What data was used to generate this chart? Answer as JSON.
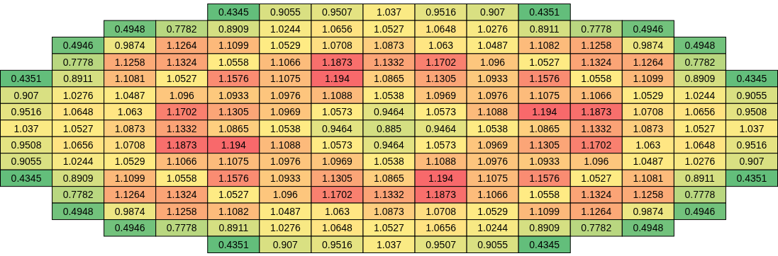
{
  "chart_data": {
    "type": "heatmap",
    "data_labels": true,
    "categories": [
      null,
      null,
      null,
      null,
      null,
      null,
      null,
      null,
      null,
      null,
      null,
      null,
      null,
      null,
      null
    ],
    "y_categories": [
      null,
      null,
      null,
      null,
      null,
      null,
      null,
      null,
      null,
      null,
      null,
      null,
      null,
      null,
      null
    ],
    "cells": [
      [
        null,
        null,
        null,
        null,
        0.4345,
        0.9055,
        0.9507,
        1.037,
        0.9516,
        0.907,
        0.4351,
        null,
        null,
        null,
        null
      ],
      [
        null,
        null,
        0.4948,
        0.7782,
        0.8909,
        1.0244,
        1.0656,
        1.0527,
        1.0648,
        1.0276,
        0.8911,
        0.7778,
        0.4946,
        null,
        null
      ],
      [
        null,
        0.4946,
        0.9874,
        1.1264,
        1.1099,
        1.0529,
        1.0708,
        1.0873,
        1.063,
        1.0487,
        1.1082,
        1.1258,
        0.9874,
        0.4948,
        null
      ],
      [
        null,
        0.7778,
        1.1258,
        1.1324,
        1.0558,
        1.1066,
        1.1873,
        1.1332,
        1.1702,
        1.096,
        1.0527,
        1.1324,
        1.1264,
        0.7782,
        null
      ],
      [
        0.4351,
        0.8911,
        1.1081,
        1.0527,
        1.1576,
        1.1075,
        1.194,
        1.0865,
        1.1305,
        1.0933,
        1.1576,
        1.0558,
        1.1099,
        0.8909,
        0.4345
      ],
      [
        0.907,
        1.0276,
        1.0487,
        1.096,
        1.0933,
        1.0976,
        1.1088,
        1.0538,
        1.0969,
        1.0976,
        1.1075,
        1.1066,
        1.0529,
        1.0244,
        0.9055
      ],
      [
        0.9516,
        1.0648,
        1.063,
        1.1702,
        1.1305,
        1.0969,
        1.0573,
        0.9464,
        1.0573,
        1.1088,
        1.194,
        1.1873,
        1.0708,
        1.0656,
        0.9508
      ],
      [
        1.037,
        1.0527,
        1.0873,
        1.1332,
        1.0865,
        1.0538,
        0.9464,
        0.885,
        0.9464,
        1.0538,
        1.0865,
        1.1332,
        1.0873,
        1.0527,
        1.037
      ],
      [
        0.9508,
        1.0656,
        1.0708,
        1.1873,
        1.194,
        1.1088,
        1.0573,
        0.9464,
        1.0573,
        1.0969,
        1.1305,
        1.1702,
        1.063,
        1.0648,
        0.9516
      ],
      [
        0.9055,
        1.0244,
        1.0529,
        1.1066,
        1.1075,
        1.0976,
        1.0969,
        1.0538,
        1.1088,
        1.0976,
        1.0933,
        1.096,
        1.0487,
        1.0276,
        0.907
      ],
      [
        0.4345,
        0.8909,
        1.1099,
        1.0558,
        1.1576,
        1.0933,
        1.1305,
        1.0865,
        1.194,
        1.1075,
        1.1576,
        1.0527,
        1.1081,
        0.8911,
        0.4351
      ],
      [
        null,
        0.7782,
        1.1264,
        1.1324,
        1.0527,
        1.096,
        1.1702,
        1.1332,
        1.1873,
        1.1066,
        1.0558,
        1.1324,
        1.1258,
        0.7778,
        null
      ],
      [
        null,
        0.4948,
        0.9874,
        1.1258,
        1.1082,
        1.0487,
        1.063,
        1.0873,
        1.0708,
        1.0529,
        1.1099,
        1.1264,
        0.9874,
        0.4946,
        null
      ],
      [
        null,
        null,
        0.4946,
        0.7778,
        0.8911,
        1.0276,
        1.0648,
        1.0527,
        1.0656,
        1.0244,
        0.8909,
        0.7782,
        0.4948,
        null,
        null
      ],
      [
        null,
        null,
        null,
        null,
        0.4351,
        0.907,
        0.9516,
        1.037,
        0.9507,
        0.9055,
        0.4345,
        null,
        null,
        null,
        null
      ]
    ]
  }
}
